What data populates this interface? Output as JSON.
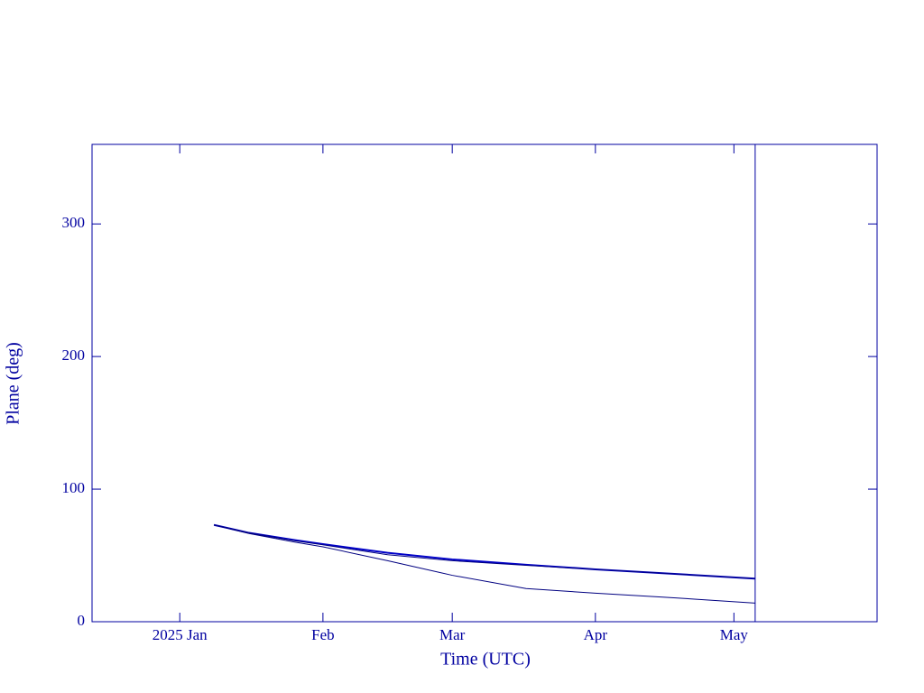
{
  "chart_data": {
    "type": "line",
    "xlabel": "Time (UTC)",
    "ylabel": "Plane (deg)",
    "xlim": [
      -19,
      151
    ],
    "ylim": [
      0,
      360
    ],
    "xticks": [
      {
        "value": 0,
        "label": "2025 Jan"
      },
      {
        "value": 31,
        "label": "Feb"
      },
      {
        "value": 59,
        "label": "Mar"
      },
      {
        "value": 90,
        "label": "Apr"
      },
      {
        "value": 120,
        "label": "May"
      }
    ],
    "yticks": [
      0,
      100,
      200,
      300
    ],
    "axis_color": "#0000a0",
    "vline_x": 124.6,
    "x": [
      7.4,
      15,
      25,
      31,
      45,
      59,
      75,
      90,
      105,
      124.6
    ],
    "series": [
      {
        "color": "#0000c8",
        "line_width": 2,
        "values": [
          73,
          67,
          61.5,
          58.5,
          52,
          47,
          43,
          39.5,
          36.5,
          32.5
        ]
      },
      {
        "color": "#000080",
        "line_width": 1,
        "values": [
          73,
          67,
          61,
          58,
          50.5,
          46,
          42.5,
          39.5,
          36.5,
          32.5
        ]
      },
      {
        "color": "#000080",
        "line_width": 1,
        "values": [
          73,
          66.5,
          60,
          56.5,
          46,
          35,
          25,
          21.5,
          18.5,
          14
        ]
      }
    ]
  }
}
